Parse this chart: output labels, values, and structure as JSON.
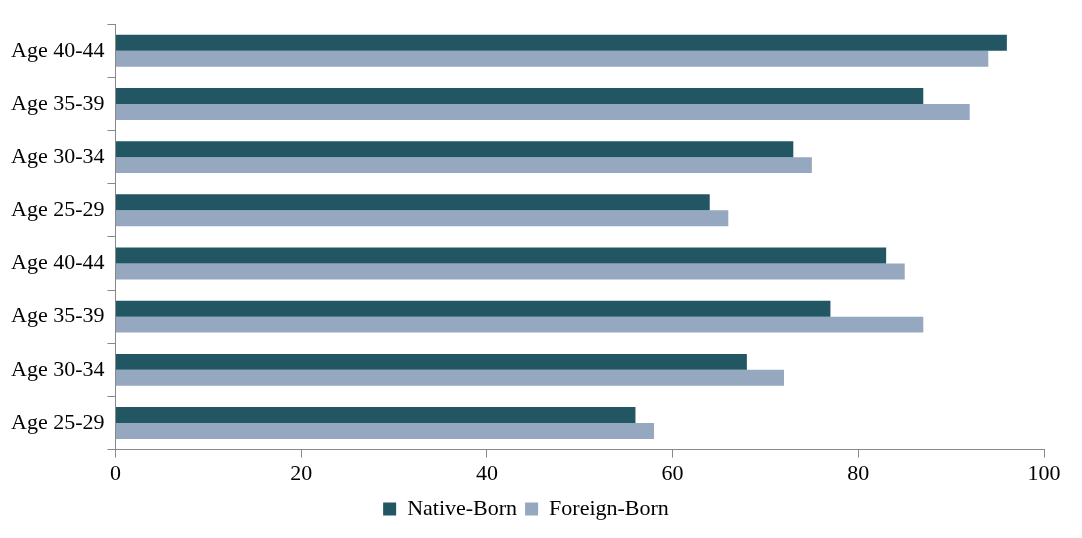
{
  "chart_data": {
    "type": "bar",
    "orientation": "horizontal",
    "categories": [
      "Age 40-44",
      "Age 35-39",
      "Age 30-34",
      "Age 25-29",
      "Age 40-44",
      "Age 35-39",
      "Age 30-34",
      "Age 25-29"
    ],
    "series": [
      {
        "name": "Native-Born",
        "color": "#215662",
        "values": [
          96,
          87,
          73,
          64,
          83,
          77,
          68,
          56
        ]
      },
      {
        "name": "Foreign-Born",
        "color": "#95a8bf",
        "values": [
          94,
          92,
          75,
          66,
          85,
          87,
          72,
          58
        ]
      }
    ],
    "xlim": [
      0,
      100
    ],
    "xticks": [
      0,
      20,
      40,
      60,
      80,
      100
    ],
    "grid": false,
    "legend": "bottom"
  }
}
